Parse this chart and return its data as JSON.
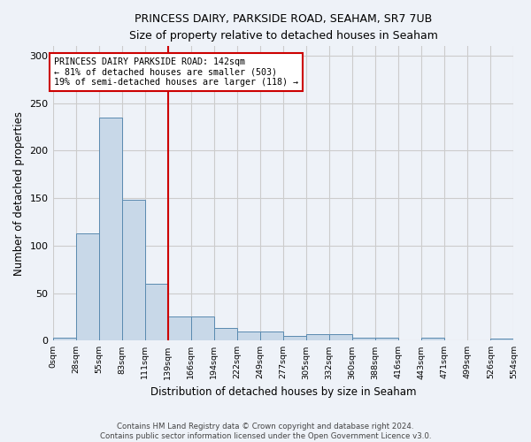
{
  "title1": "PRINCESS DAIRY, PARKSIDE ROAD, SEAHAM, SR7 7UB",
  "title2": "Size of property relative to detached houses in Seaham",
  "xlabel": "Distribution of detached houses by size in Seaham",
  "ylabel": "Number of detached properties",
  "bin_edges": [
    0,
    27.5,
    55,
    82.5,
    110,
    137.5,
    165,
    192.5,
    220,
    247.5,
    275,
    302.5,
    330,
    357.5,
    385,
    412.5,
    440,
    467.5,
    495,
    522.5,
    550
  ],
  "bin_labels": [
    "0sqm",
    "28sqm",
    "55sqm",
    "83sqm",
    "111sqm",
    "139sqm",
    "166sqm",
    "194sqm",
    "222sqm",
    "249sqm",
    "277sqm",
    "305sqm",
    "332sqm",
    "360sqm",
    "388sqm",
    "416sqm",
    "443sqm",
    "471sqm",
    "499sqm",
    "526sqm",
    "554sqm"
  ],
  "bar_heights": [
    3,
    113,
    235,
    148,
    60,
    25,
    25,
    13,
    10,
    10,
    5,
    7,
    7,
    3,
    3,
    0,
    3,
    0,
    0,
    2
  ],
  "bar_color": "#c8d8e8",
  "bar_edge_color": "#5a8ab0",
  "vline_x": 137.5,
  "vline_color": "#cc0000",
  "annotation_text": "PRINCESS DAIRY PARKSIDE ROAD: 142sqm\n← 81% of detached houses are smaller (503)\n19% of semi-detached houses are larger (118) →",
  "annotation_box_color": "white",
  "annotation_box_edge_color": "#cc0000",
  "ylim": [
    0,
    310
  ],
  "yticks": [
    0,
    50,
    100,
    150,
    200,
    250,
    300
  ],
  "grid_color": "#cccccc",
  "footer1": "Contains HM Land Registry data © Crown copyright and database right 2024.",
  "footer2": "Contains public sector information licensed under the Open Government Licence v3.0.",
  "bg_color": "#eef2f8",
  "title1_fontsize": 9,
  "title2_fontsize": 9,
  "ylabel_fontsize": 8.5,
  "xlabel_fontsize": 8.5
}
